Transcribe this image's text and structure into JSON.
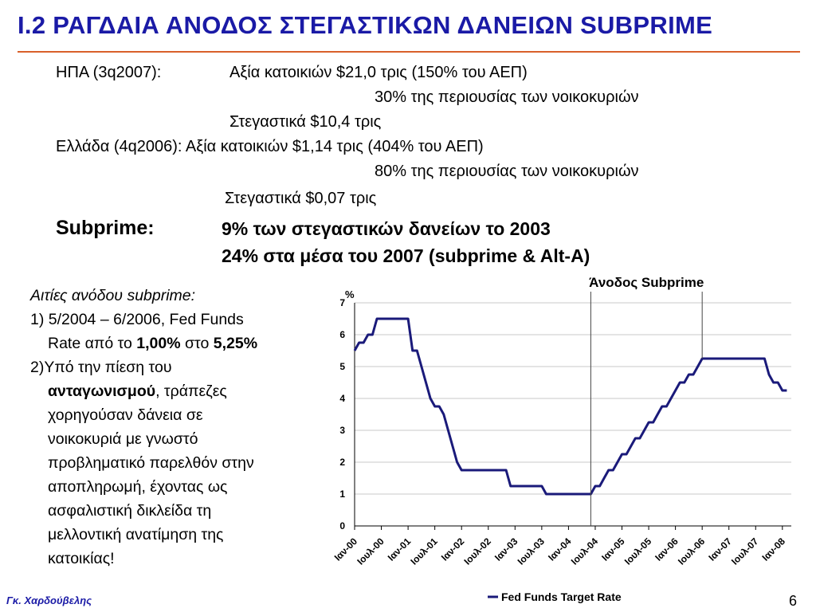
{
  "title": "I.2   ΡΑΓΔΑΙΑ ΑΝΟΔΟΣ ΣΤΕΓΑΣΤΙΚΩΝ ΔΑΝΕΙΩΝ SUBPRIME",
  "stats": {
    "usa_label": "ΗΠΑ (3q2007):",
    "usa_value": "Αξία κατοικιών $21,0 τρις  (150% του ΑΕΠ)",
    "usa_share": "30% της περιουσίας των νοικοκυριών",
    "usa_mortgage": "Στεγαστικά      $10,4 τρις",
    "gr_label_value": "Ελλάδα (4q2006): Αξία κατοικιών  $1,14 τρις  (404% του ΑΕΠ)",
    "gr_share": "80% της περιουσίας των νοικοκυριών",
    "gr_mortgage": "Στεγαστικά       $0,07 τρις"
  },
  "subprime": {
    "label": "Subprime:",
    "line1": "9% των στεγαστικών δανείων το 2003",
    "line2": "24% στα μέσα του 2007 (subprime & Alt-A)"
  },
  "causes": {
    "heading": "Αιτίες ανόδου subprime:",
    "c1_a": "1) 5/2004 – 6/2006, Fed Funds",
    "c1_b_pre": "Rate από το ",
    "c1_b_from": "1,00%",
    "c1_b_mid": " στο ",
    "c1_b_to": "5,25%",
    "c2_a": "2)Υπό την πίεση του",
    "c2_b_bold": "ανταγωνισμού",
    "c2_b_rest": ", τράπεζες",
    "c2_c": "χορηγούσαν δάνεια σε",
    "c2_d": "νοικοκυριά με γνωστό",
    "c2_e": "προβληματικό παρελθόν στην",
    "c2_f": "αποπληρωμή, έχοντας ως",
    "c2_g": "ασφαλιστική δικλείδα τη",
    "c2_h": "μελλοντική ανατίμηση της",
    "c2_i": "κατοικίας!"
  },
  "footer": {
    "author": "Γκ. Χαρδούβελης",
    "page": "6"
  },
  "chart_data": {
    "type": "line",
    "ylabel": "%",
    "ylim": [
      0,
      7
    ],
    "yticks": [
      0,
      1,
      2,
      3,
      4,
      5,
      6,
      7
    ],
    "x_tick_labels": [
      "Ιαν-00",
      "Ιουλ-00",
      "Ιαν-01",
      "Ιουλ-01",
      "Ιαν-02",
      "Ιουλ-02",
      "Ιαν-03",
      "Ιουλ-03",
      "Ιαν-04",
      "Ιουλ-04",
      "Ιαν-05",
      "Ιουλ-05",
      "Ιαν-06",
      "Ιουλ-06",
      "Ιαν-07",
      "Ιουλ-07",
      "Ιαν-08"
    ],
    "x_range_months": [
      0,
      98
    ],
    "annotation": "Άνοδος Subprime",
    "annotation_span_months": [
      53,
      78
    ],
    "legend": "Fed Funds Target Rate",
    "legend_position": "bottom",
    "grid": true,
    "line_color": "#1a1a7a",
    "series": [
      {
        "name": "Fed Funds Target Rate",
        "points": [
          [
            0,
            5.5
          ],
          [
            1,
            5.75
          ],
          [
            2,
            5.75
          ],
          [
            3,
            6.0
          ],
          [
            4,
            6.0
          ],
          [
            5,
            6.5
          ],
          [
            12,
            6.5
          ],
          [
            13,
            5.5
          ],
          [
            14,
            5.5
          ],
          [
            15,
            5.0
          ],
          [
            16,
            4.5
          ],
          [
            17,
            4.0
          ],
          [
            18,
            3.75
          ],
          [
            19,
            3.75
          ],
          [
            20,
            3.5
          ],
          [
            21,
            3.0
          ],
          [
            22,
            2.5
          ],
          [
            23,
            2.0
          ],
          [
            24,
            1.75
          ],
          [
            34,
            1.75
          ],
          [
            35,
            1.25
          ],
          [
            42,
            1.25
          ],
          [
            43,
            1.0
          ],
          [
            53,
            1.0
          ],
          [
            54,
            1.25
          ],
          [
            55,
            1.25
          ],
          [
            56,
            1.5
          ],
          [
            57,
            1.75
          ],
          [
            58,
            1.75
          ],
          [
            59,
            2.0
          ],
          [
            60,
            2.25
          ],
          [
            61,
            2.25
          ],
          [
            62,
            2.5
          ],
          [
            63,
            2.75
          ],
          [
            64,
            2.75
          ],
          [
            65,
            3.0
          ],
          [
            66,
            3.25
          ],
          [
            67,
            3.25
          ],
          [
            68,
            3.5
          ],
          [
            69,
            3.75
          ],
          [
            70,
            3.75
          ],
          [
            71,
            4.0
          ],
          [
            72,
            4.25
          ],
          [
            73,
            4.5
          ],
          [
            74,
            4.5
          ],
          [
            75,
            4.75
          ],
          [
            76,
            4.75
          ],
          [
            77,
            5.0
          ],
          [
            78,
            5.25
          ],
          [
            92,
            5.25
          ],
          [
            93,
            4.75
          ],
          [
            94,
            4.5
          ],
          [
            95,
            4.5
          ],
          [
            96,
            4.25
          ],
          [
            97,
            4.25
          ]
        ]
      }
    ]
  }
}
